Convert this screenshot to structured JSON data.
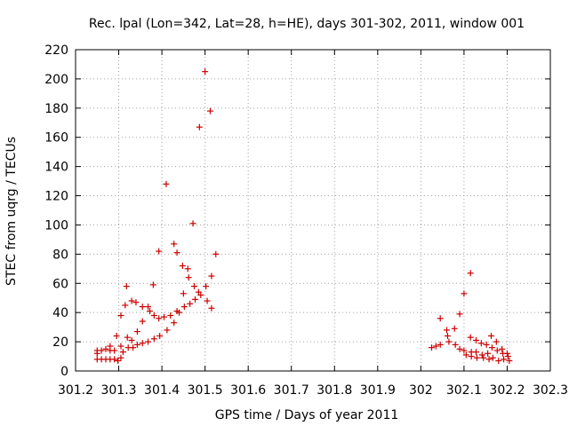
{
  "chart_data": {
    "type": "scatter",
    "title": "Rec. lpal (Lon=342, Lat=28, h=HE), days 301-302, 2011, window 001",
    "xlabel": "GPS time / Days of year 2011",
    "ylabel": "STEC from uqrg / TECUs",
    "xlim": [
      301.2,
      302.3
    ],
    "ylim": [
      0,
      220
    ],
    "x_ticks": [
      "301.2",
      "301.3",
      "301.4",
      "301.5",
      "301.6",
      "301.7",
      "301.8",
      "301.9",
      "302",
      "302.1",
      "302.2",
      "302.3"
    ],
    "y_ticks": [
      "0",
      "20",
      "40",
      "60",
      "80",
      "100",
      "120",
      "140",
      "160",
      "180",
      "200",
      "220"
    ],
    "grid": true,
    "marker": "+",
    "color": "#cc0000",
    "points": [
      [
        301.25,
        14
      ],
      [
        301.25,
        12
      ],
      [
        301.25,
        8
      ],
      [
        301.26,
        14
      ],
      [
        301.26,
        8
      ],
      [
        301.27,
        15
      ],
      [
        301.27,
        8
      ],
      [
        301.28,
        17
      ],
      [
        301.28,
        14
      ],
      [
        301.28,
        8
      ],
      [
        301.29,
        14
      ],
      [
        301.29,
        8
      ],
      [
        301.295,
        24
      ],
      [
        301.298,
        7
      ],
      [
        301.305,
        38
      ],
      [
        301.305,
        17
      ],
      [
        301.305,
        9
      ],
      [
        301.31,
        13
      ],
      [
        301.315,
        45
      ],
      [
        301.318,
        58
      ],
      [
        301.32,
        23
      ],
      [
        301.322,
        16
      ],
      [
        301.33,
        48
      ],
      [
        301.33,
        21
      ],
      [
        301.333,
        16
      ],
      [
        301.34,
        47
      ],
      [
        301.343,
        27
      ],
      [
        301.343,
        18
      ],
      [
        301.355,
        44
      ],
      [
        301.355,
        34
      ],
      [
        301.355,
        19
      ],
      [
        301.368,
        44
      ],
      [
        301.368,
        20
      ],
      [
        301.372,
        41
      ],
      [
        301.38,
        59
      ],
      [
        301.382,
        38
      ],
      [
        301.382,
        22
      ],
      [
        301.393,
        82
      ],
      [
        301.393,
        36
      ],
      [
        301.395,
        24
      ],
      [
        301.405,
        37
      ],
      [
        301.41,
        128
      ],
      [
        301.412,
        28
      ],
      [
        301.42,
        38
      ],
      [
        301.428,
        87
      ],
      [
        301.428,
        33
      ],
      [
        301.435,
        81
      ],
      [
        301.435,
        41
      ],
      [
        301.44,
        40
      ],
      [
        301.448,
        72
      ],
      [
        301.45,
        53
      ],
      [
        301.452,
        44
      ],
      [
        301.46,
        70
      ],
      [
        301.462,
        64
      ],
      [
        301.465,
        46
      ],
      [
        301.472,
        101
      ],
      [
        301.475,
        58
      ],
      [
        301.477,
        49
      ],
      [
        301.485,
        54
      ],
      [
        301.487,
        167
      ],
      [
        301.49,
        52
      ],
      [
        301.5,
        205
      ],
      [
        301.502,
        58
      ],
      [
        301.505,
        48
      ],
      [
        301.512,
        178
      ],
      [
        301.515,
        65
      ],
      [
        301.515,
        43
      ],
      [
        301.525,
        80
      ],
      [
        302.025,
        16
      ],
      [
        302.035,
        17
      ],
      [
        302.045,
        36
      ],
      [
        302.045,
        18
      ],
      [
        302.06,
        28
      ],
      [
        302.062,
        24
      ],
      [
        302.065,
        20
      ],
      [
        302.078,
        29
      ],
      [
        302.08,
        18
      ],
      [
        302.09,
        39
      ],
      [
        302.09,
        15
      ],
      [
        302.1,
        53
      ],
      [
        302.1,
        14
      ],
      [
        302.105,
        11
      ],
      [
        302.115,
        67
      ],
      [
        302.115,
        23
      ],
      [
        302.117,
        13
      ],
      [
        302.117,
        10
      ],
      [
        302.128,
        21
      ],
      [
        302.128,
        13
      ],
      [
        302.13,
        9
      ],
      [
        302.14,
        19
      ],
      [
        302.142,
        11
      ],
      [
        302.145,
        9
      ],
      [
        302.152,
        18
      ],
      [
        302.155,
        12
      ],
      [
        302.158,
        8
      ],
      [
        302.163,
        24
      ],
      [
        302.165,
        16
      ],
      [
        302.167,
        9
      ],
      [
        302.175,
        20
      ],
      [
        302.177,
        14
      ],
      [
        302.18,
        7
      ],
      [
        302.188,
        15
      ],
      [
        302.19,
        12
      ],
      [
        302.192,
        8
      ],
      [
        302.2,
        12
      ],
      [
        302.202,
        10
      ],
      [
        302.205,
        7
      ]
    ]
  }
}
